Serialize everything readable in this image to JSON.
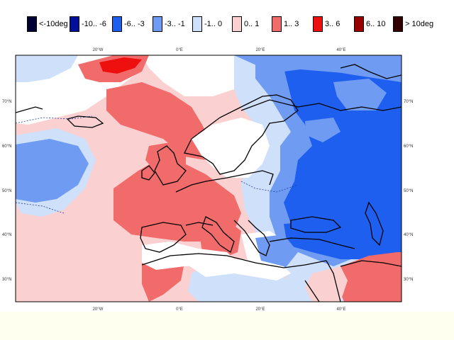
{
  "legend": {
    "items": [
      {
        "label": "<-10deg",
        "color": "#000033"
      },
      {
        "label": "-10.. -6",
        "color": "#00109a"
      },
      {
        "label": "-6.. -3",
        "color": "#1f5ff0"
      },
      {
        "label": "-3.. -1",
        "color": "#6f9cf2"
      },
      {
        "label": "-1.. 0",
        "color": "#cfe0fb"
      },
      {
        "label": "0.. 1",
        "color": "#fbd0d0"
      },
      {
        "label": "1.. 3",
        "color": "#f26b6b"
      },
      {
        "label": "3.. 6",
        "color": "#ee0f0f"
      },
      {
        "label": "6.. 10",
        "color": "#990000"
      },
      {
        "label": "> 10deg",
        "color": "#330000"
      }
    ]
  },
  "map": {
    "lon_top": [
      "20°W",
      "0°E",
      "20°E",
      "40°E"
    ],
    "lon_bottom": [
      "20°W",
      "0°E",
      "20°E",
      "40°E"
    ],
    "lat_left": [
      "70°N",
      "60°N",
      "50°N",
      "40°N",
      "30°N"
    ],
    "lat_right": [
      "70°N",
      "60°N",
      "50°N",
      "40°N",
      "30°N"
    ]
  }
}
